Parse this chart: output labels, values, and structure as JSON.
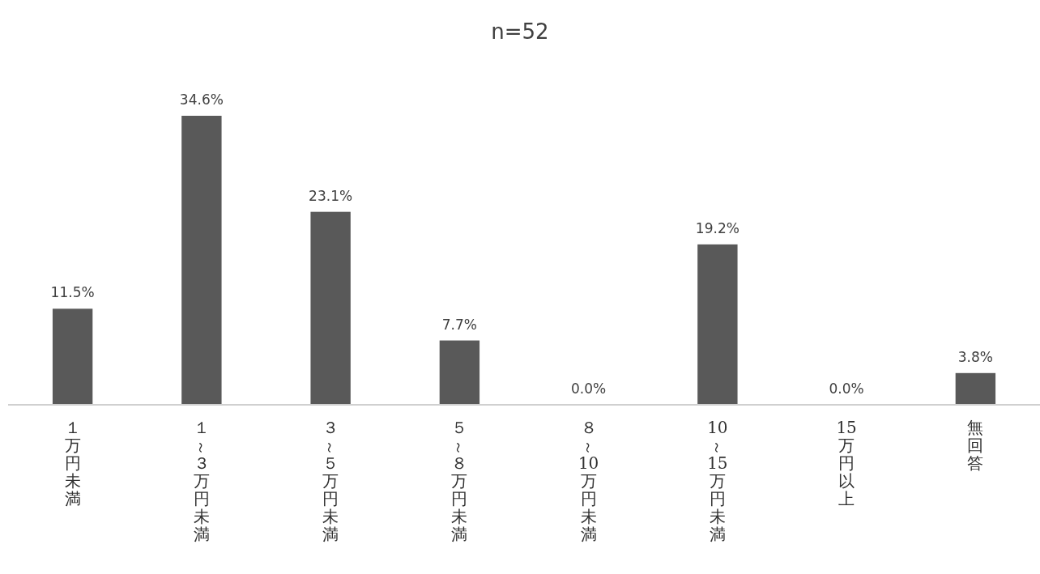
{
  "chart_data": {
    "type": "bar",
    "title": "n=52",
    "categories": [
      "１万円未満",
      "１～３万円未満",
      "３～５万円未満",
      "５～８万円未満",
      "８～10万円未満",
      "10～15万円未満",
      "15万円以上",
      "無回答"
    ],
    "values": [
      11.5,
      34.6,
      23.1,
      7.7,
      0.0,
      19.2,
      0.0,
      3.8
    ],
    "value_labels": [
      "11.5%",
      "34.6%",
      "23.1%",
      "7.7%",
      "0.0%",
      "19.2%",
      "0.0%",
      "3.8%"
    ],
    "color": "#595959"
  }
}
